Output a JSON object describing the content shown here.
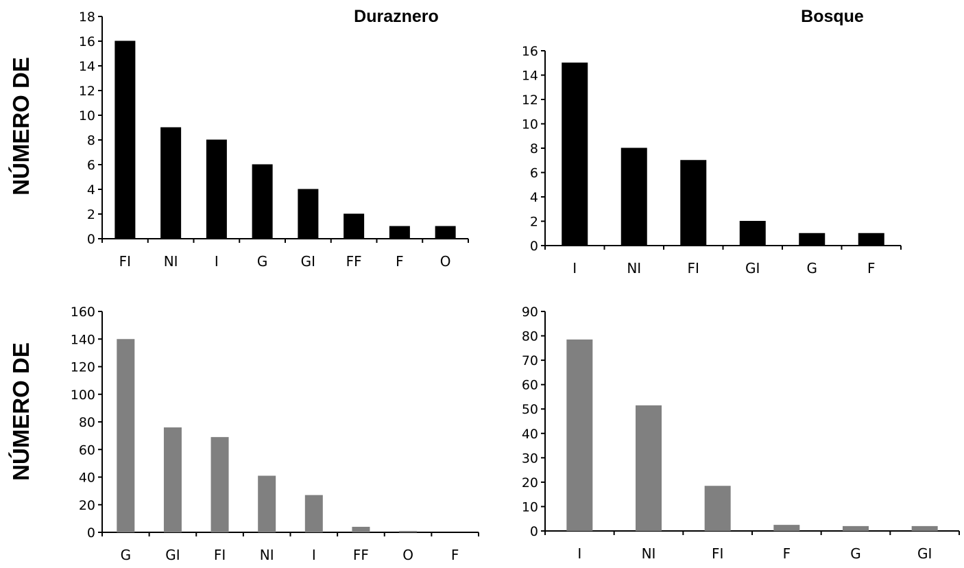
{
  "titles": {
    "duraznero": "Duraznero",
    "bosque": "Bosque"
  },
  "row_labels": {
    "top": "NÚMERO DE",
    "bottom": "NÚMERO DE"
  },
  "colors": {
    "top_bars": "#000000",
    "bottom_bars": "#808080"
  },
  "chart_data": [
    {
      "type": "bar",
      "title": "Duraznero",
      "ylabel": "NÚMERO DE",
      "categories": [
        "FI",
        "NI",
        "I",
        "G",
        "GI",
        "FF",
        "F",
        "O"
      ],
      "values": [
        16,
        9,
        8,
        6,
        4,
        2,
        1,
        1
      ],
      "ylim": [
        0,
        18
      ],
      "yticks": [
        "0",
        "2",
        "4",
        "6",
        "8",
        "10",
        "12",
        "14",
        "16",
        "18"
      ],
      "grid": false
    },
    {
      "type": "bar",
      "title": "Bosque",
      "ylabel": "",
      "categories": [
        "I",
        "NI",
        "FI",
        "GI",
        "G",
        "F"
      ],
      "values": [
        15,
        8,
        7,
        2,
        1,
        1
      ],
      "ylim": [
        0,
        16
      ],
      "yticks": [
        "0",
        "2",
        "4",
        "6",
        "8",
        "10",
        "12",
        "14",
        "16"
      ],
      "grid": false
    },
    {
      "type": "bar",
      "title": "",
      "ylabel": "NÚMERO DE",
      "categories": [
        "G",
        "GI",
        "FI",
        "NI",
        "I",
        "FF",
        "O",
        "F"
      ],
      "values": [
        140,
        76,
        69,
        41,
        27,
        4,
        1,
        0
      ],
      "ylim": [
        0,
        160
      ],
      "yticks": [
        "0",
        "20",
        "40",
        "60",
        "80",
        "100",
        "120",
        "140",
        "160"
      ],
      "grid": false
    },
    {
      "type": "bar",
      "title": "",
      "ylabel": "",
      "categories": [
        "I",
        "NI",
        "FI",
        "F",
        "G",
        "GI"
      ],
      "values": [
        78.5,
        51.5,
        18.5,
        2.5,
        2,
        2
      ],
      "ylim": [
        0,
        90
      ],
      "yticks": [
        "0",
        "10",
        "20",
        "30",
        "40",
        "50",
        "60",
        "70",
        "80",
        "90"
      ],
      "grid": false
    }
  ]
}
